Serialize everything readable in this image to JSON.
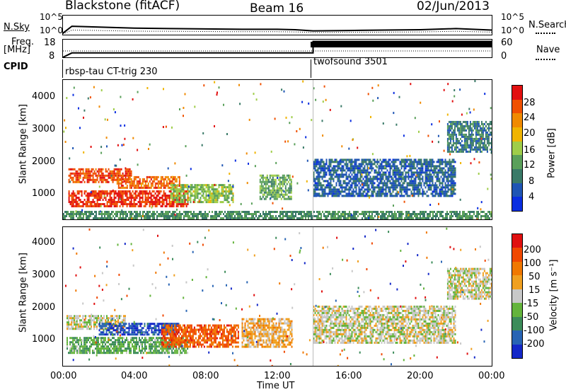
{
  "header": {
    "title": "Blackstone (fitACF)",
    "beam": "Beam 16",
    "date": "02/Jun/2013"
  },
  "top_panels": {
    "nsky_label": "N.Sky",
    "nsky_ticks": [
      "10^5",
      "10^0"
    ],
    "nsearch_ticks": [
      "10^5",
      "10^0"
    ],
    "nsearch_label": "N.Search",
    "freq_label": "Freq.",
    "freq_unit": "[MHz]",
    "freq_ticks": [
      "18",
      "8"
    ],
    "nave_ticks": [
      "60",
      "0"
    ],
    "nave_label": "Nave",
    "cpid_label": "CPID",
    "cpid_programs": [
      "rbsp-tau CT-trig 230",
      "twofsound 3501"
    ]
  },
  "x_axis": {
    "label": "Time UT",
    "ticks": [
      "00:00",
      "04:00",
      "08:00",
      "12:00",
      "16:00",
      "20:00",
      "00:00"
    ]
  },
  "power_panel": {
    "ylabel": "Slant Range [km]",
    "yticks": [
      "4000",
      "3000",
      "2000",
      "1000"
    ],
    "colorbar_label": "Power [dB]",
    "colorbar_ticks": [
      "28",
      "24",
      "20",
      "16",
      "12",
      "8",
      "4"
    ],
    "colors": [
      "#0a2ee0",
      "#1f55b4",
      "#3a7a68",
      "#5aa05a",
      "#9fcd49",
      "#f0b400",
      "#f08a00",
      "#f05000",
      "#e21010"
    ]
  },
  "velocity_panel": {
    "ylabel": "Slant Range [km]",
    "yticks": [
      "4000",
      "3000",
      "2000",
      "1000"
    ],
    "colorbar_label": "Velocity [m s⁻¹]",
    "colorbar_ticks": [
      "200",
      "100",
      "50",
      "15",
      "-15",
      "-50",
      "-100",
      "-200"
    ],
    "colors": [
      "#1428c8",
      "#2864b4",
      "#3c8c5a",
      "#64b43c",
      "#c8c8c8",
      "#f0a020",
      "#f07800",
      "#f04800",
      "#e01010"
    ]
  },
  "chart_data": [
    {
      "type": "line",
      "name": "N.Sky / N.Search noise",
      "x": [
        0,
        0.5,
        2,
        4,
        6,
        8,
        10,
        12,
        13,
        14,
        16,
        18,
        20,
        22,
        24
      ],
      "y": [
        0.4,
        2.2,
        2.0,
        1.7,
        1.6,
        1.5,
        1.4,
        1.4,
        1.3,
        1.0,
        1.1,
        1.2,
        1.3,
        1.6,
        1.2
      ],
      "xlim": [
        0,
        24
      ],
      "ylim": [
        0,
        5
      ]
    },
    {
      "type": "line",
      "name": "Freq.",
      "x": [
        0,
        0.5,
        14.0,
        14.0,
        24
      ],
      "y": [
        8,
        10.5,
        10.5,
        17,
        17
      ],
      "xlim": [
        0,
        24
      ],
      "ylim": [
        8,
        18
      ]
    },
    {
      "type": "heatmap",
      "name": "Power",
      "xlim": [
        0,
        24
      ],
      "ylim": [
        180,
        4600
      ],
      "zlim": [
        0,
        30
      ],
      "regions": [
        {
          "x0": 0.3,
          "x1": 3.8,
          "y0": 1350,
          "y1": 1800,
          "value": 26
        },
        {
          "x0": 3.0,
          "x1": 6.5,
          "y0": 1150,
          "y1": 1550,
          "value": 24
        },
        {
          "x0": 0.3,
          "x1": 7.0,
          "y0": 600,
          "y1": 1100,
          "value": 27
        },
        {
          "x0": 6.0,
          "x1": 9.5,
          "y0": 750,
          "y1": 1300,
          "value": 14
        },
        {
          "x0": 11.0,
          "x1": 12.8,
          "y0": 800,
          "y1": 1600,
          "value": 12
        },
        {
          "x0": 14.0,
          "x1": 22.0,
          "y0": 900,
          "y1": 2100,
          "value": 6
        },
        {
          "x0": 21.5,
          "x1": 24.0,
          "y0": 2300,
          "y1": 3300,
          "value": 8
        },
        {
          "x0": 0.0,
          "x1": 24.0,
          "y0": 180,
          "y1": 450,
          "value": 10
        }
      ]
    },
    {
      "type": "heatmap",
      "name": "Velocity",
      "xlim": [
        0,
        24
      ],
      "ylim": [
        180,
        4600
      ],
      "zlim": [
        -200,
        200
      ],
      "regions": [
        {
          "x0": 0.2,
          "x1": 3.5,
          "y0": 1350,
          "y1": 1800,
          "value": 0
        },
        {
          "x0": 2.0,
          "x1": 6.5,
          "y0": 1150,
          "y1": 1550,
          "value": -150
        },
        {
          "x0": 0.2,
          "x1": 7.0,
          "y0": 600,
          "y1": 1100,
          "value": -60
        },
        {
          "x0": 5.5,
          "x1": 9.8,
          "y0": 800,
          "y1": 1500,
          "value": 120
        },
        {
          "x0": 10.0,
          "x1": 12.8,
          "y0": 800,
          "y1": 1700,
          "value": 40
        },
        {
          "x0": 14.0,
          "x1": 22.0,
          "y0": 900,
          "y1": 2100,
          "value": 0
        },
        {
          "x0": 21.5,
          "x1": 24.0,
          "y0": 2300,
          "y1": 3300,
          "value": 0
        }
      ]
    }
  ]
}
